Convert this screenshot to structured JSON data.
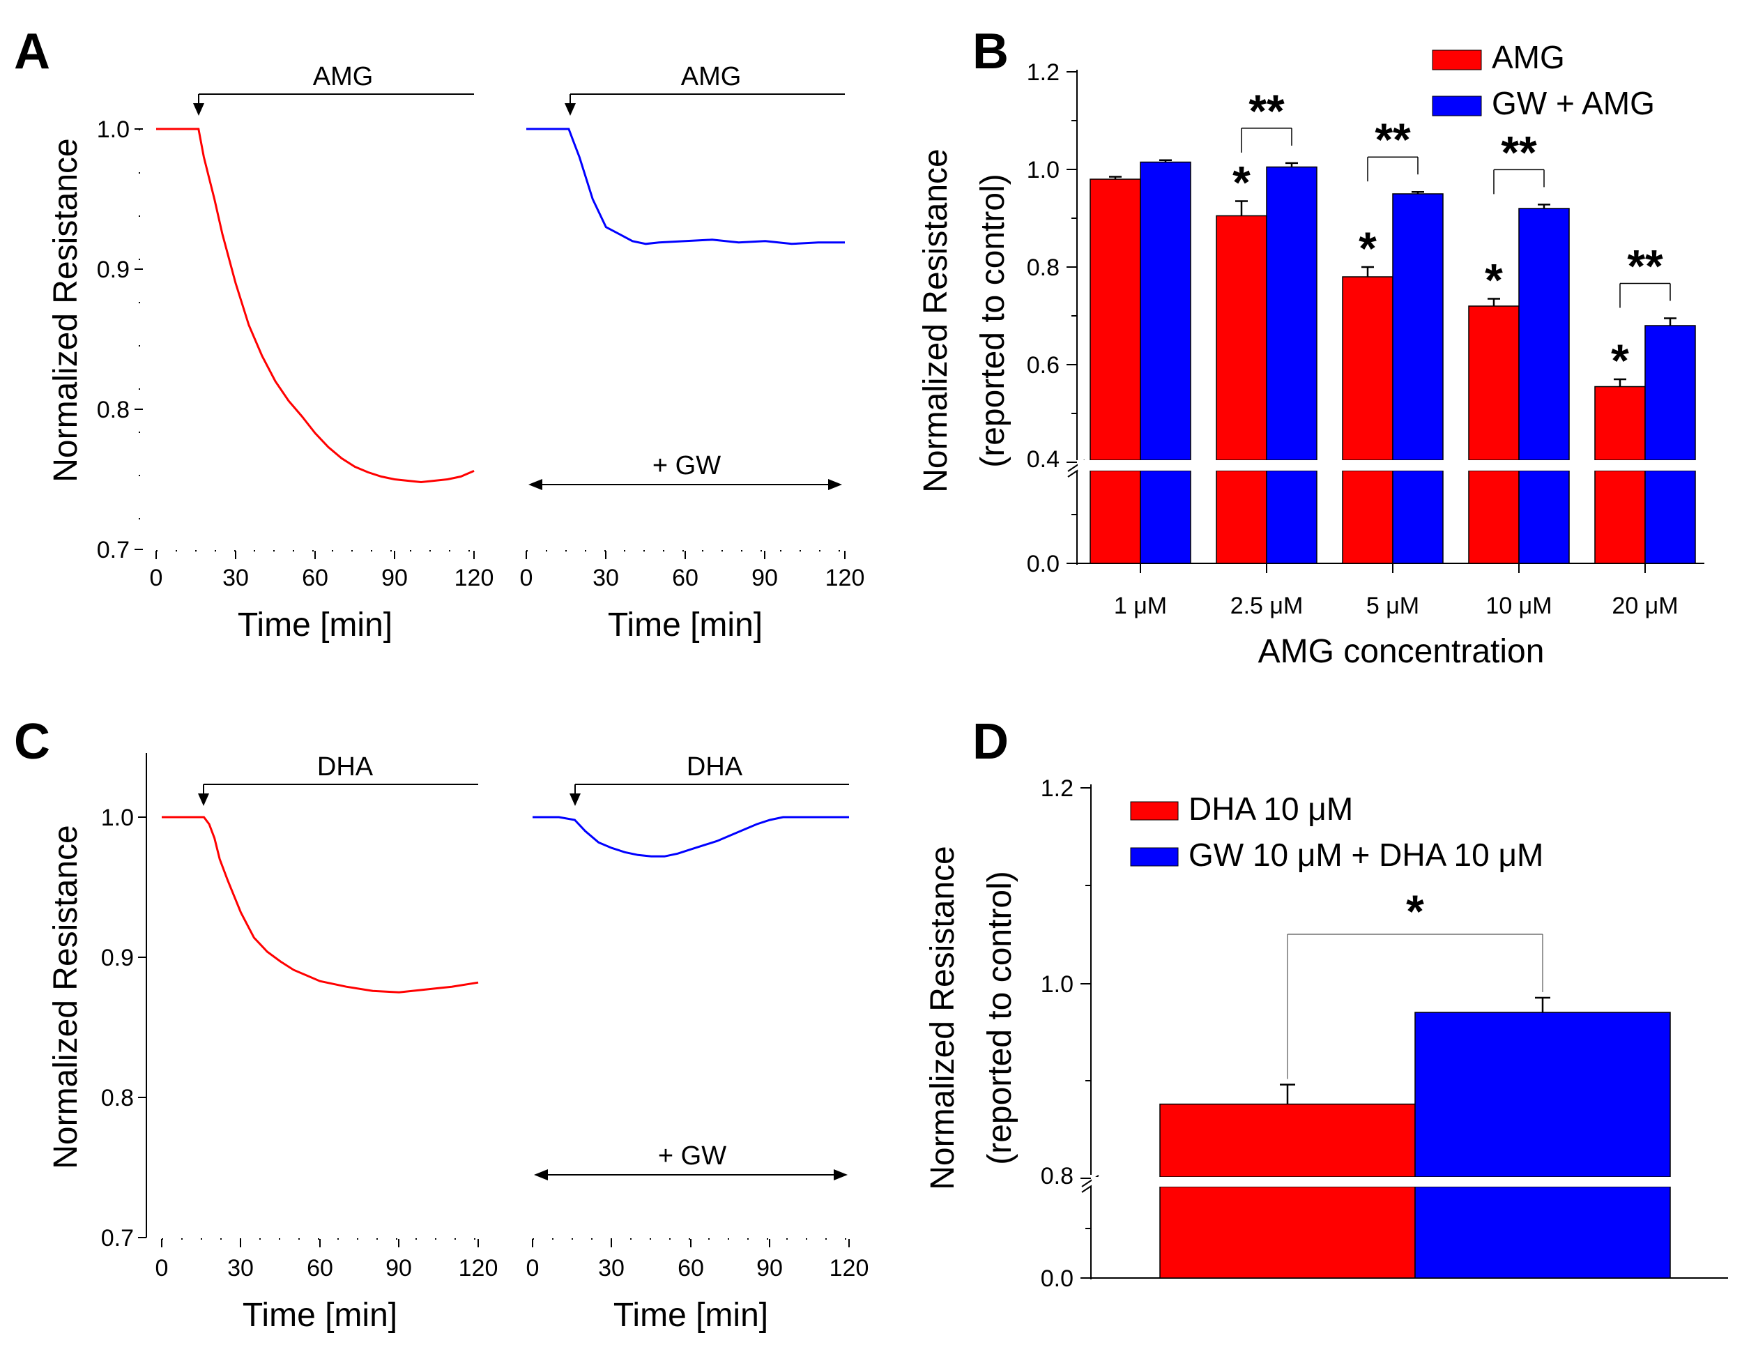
{
  "chart_data": [
    {
      "panel": "A",
      "type": "line",
      "ylabel": "Normalized Resistance",
      "ylim": [
        0.7,
        1.05
      ],
      "yticks": [
        "0.7",
        "0.8",
        "0.9",
        "1.0"
      ],
      "subplots": [
        {
          "name": "AMG",
          "color": "#ff0000",
          "title": "AMG",
          "treatment": "",
          "xlabel": "Time [min]",
          "xlim": [
            0,
            120
          ],
          "xticks": [
            "0",
            "30",
            "60",
            "90",
            "120"
          ],
          "onset": 16,
          "x": [
            0,
            10,
            16,
            17,
            18,
            20,
            22,
            25,
            30,
            35,
            40,
            45,
            50,
            55,
            60,
            65,
            70,
            75,
            80,
            85,
            90,
            95,
            100,
            105,
            110,
            115,
            120
          ],
          "y": [
            1.0,
            1.0,
            1.0,
            0.99,
            0.98,
            0.965,
            0.95,
            0.925,
            0.89,
            0.86,
            0.838,
            0.82,
            0.806,
            0.795,
            0.783,
            0.773,
            0.765,
            0.759,
            0.755,
            0.752,
            0.75,
            0.749,
            0.748,
            0.749,
            0.75,
            0.752,
            0.756
          ]
        },
        {
          "name": "GW + AMG",
          "color": "#0000ff",
          "title": "AMG",
          "treatment": "+ GW",
          "xlabel": "Time [min]",
          "xlim": [
            0,
            120
          ],
          "xticks": [
            "0",
            "30",
            "60",
            "90",
            "120"
          ],
          "onset": 16,
          "x": [
            0,
            10,
            16,
            18,
            20,
            25,
            30,
            35,
            40,
            45,
            50,
            60,
            70,
            80,
            90,
            100,
            110,
            120
          ],
          "y": [
            1.0,
            1.0,
            1.0,
            0.99,
            0.98,
            0.95,
            0.93,
            0.925,
            0.92,
            0.918,
            0.919,
            0.92,
            0.921,
            0.919,
            0.92,
            0.918,
            0.919,
            0.919
          ]
        }
      ]
    },
    {
      "panel": "B",
      "type": "bar",
      "title": "",
      "xlabel": "AMG concentration",
      "ylabel": "Normalized Resistance",
      "ylabel2": "(reported to control)",
      "categories": [
        "1 μM",
        "2.5 μM",
        "5 μM",
        "10 μM",
        "20 μM"
      ],
      "yticks": [
        "0.0",
        "0.4",
        "0.6",
        "0.8",
        "1.0",
        "1.2"
      ],
      "axis_break": 0.4,
      "ylim": [
        0.0,
        1.2
      ],
      "series": [
        {
          "name": "AMG",
          "color": "#ff0000",
          "values": [
            0.98,
            0.905,
            0.78,
            0.72,
            0.555
          ],
          "errors": [
            0.005,
            0.03,
            0.02,
            0.015,
            0.015
          ]
        },
        {
          "name": "GW + AMG",
          "color": "#0000ff",
          "values": [
            1.015,
            1.005,
            0.95,
            0.92,
            0.68
          ],
          "errors": [
            0.004,
            0.008,
            0.004,
            0.008,
            0.015
          ]
        }
      ],
      "single_star": "*",
      "single_star_on": [
        false,
        true,
        true,
        true,
        true
      ],
      "double_star": "**",
      "double_star_on": [
        false,
        true,
        true,
        true,
        true
      ]
    },
    {
      "panel": "C",
      "type": "line",
      "ylabel": "Normalized Resistance",
      "ylim": [
        0.7,
        1.05
      ],
      "yticks": [
        "0.7",
        "0.8",
        "0.9",
        "1.0"
      ],
      "subplots": [
        {
          "name": "DHA",
          "color": "#ff0000",
          "title": "DHA",
          "treatment": "",
          "xlabel": "Time [min]",
          "xlim": [
            0,
            120
          ],
          "xticks": [
            "0",
            "30",
            "60",
            "90",
            "120"
          ],
          "onset": 16,
          "x": [
            0,
            10,
            16,
            18,
            20,
            22,
            25,
            30,
            35,
            40,
            45,
            50,
            55,
            60,
            70,
            80,
            90,
            100,
            110,
            120
          ],
          "y": [
            1.0,
            1.0,
            1.0,
            0.995,
            0.985,
            0.97,
            0.955,
            0.932,
            0.914,
            0.904,
            0.897,
            0.891,
            0.887,
            0.883,
            0.879,
            0.876,
            0.875,
            0.877,
            0.879,
            0.882
          ]
        },
        {
          "name": "GW + DHA",
          "color": "#0000ff",
          "title": "DHA",
          "treatment": "+ GW",
          "xlabel": "Time [min]",
          "xlim": [
            0,
            120
          ],
          "xticks": [
            "0",
            "30",
            "60",
            "90",
            "120"
          ],
          "onset": 16,
          "x": [
            0,
            10,
            16,
            20,
            25,
            30,
            35,
            40,
            45,
            50,
            55,
            60,
            65,
            70,
            75,
            80,
            85,
            90,
            95,
            100,
            110,
            120
          ],
          "y": [
            1.0,
            1.0,
            0.998,
            0.99,
            0.982,
            0.978,
            0.975,
            0.973,
            0.972,
            0.972,
            0.974,
            0.977,
            0.98,
            0.983,
            0.987,
            0.991,
            0.995,
            0.998,
            1.0,
            1.0,
            1.0,
            1.0
          ]
        }
      ]
    },
    {
      "panel": "D",
      "type": "bar",
      "title": "",
      "xlabel": "",
      "ylabel": "Normalized Resistance",
      "ylabel2": "(reported to control)",
      "categories": [
        ""
      ],
      "yticks": [
        "0.0",
        "0.8",
        "1.0",
        "1.2"
      ],
      "axis_break": 0.8,
      "ylim": [
        0.0,
        1.2
      ],
      "series": [
        {
          "name": "DHA 10 μM",
          "color": "#ff0000",
          "values": [
            0.876
          ],
          "errors": [
            0.02
          ]
        },
        {
          "name": "GW 10 μM + DHA 10 μM",
          "color": "#0000ff",
          "values": [
            0.97
          ],
          "errors": [
            0.015
          ]
        }
      ],
      "single_star": "*"
    }
  ]
}
